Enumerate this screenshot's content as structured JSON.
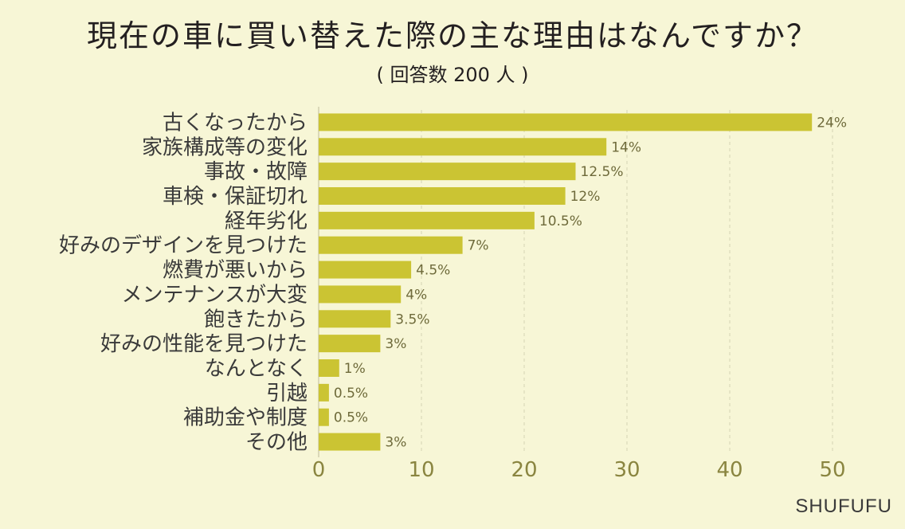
{
  "chart_data": {
    "type": "bar",
    "orientation": "horizontal",
    "title": "現在の車に買い替えた際の主な理由はなんですか？",
    "subtitle": "( 回答数 200 人 )",
    "categories": [
      "古くなったから",
      "家族構成等の変化",
      "事故・故障",
      "車検・保証切れ",
      "経年劣化",
      "好みのデザインを見つけた",
      "燃費が悪いから",
      "メンテナンスが大変",
      "飽きたから",
      "好みの性能を見つけた",
      "なんとなく",
      "引越",
      "補助金や制度",
      "その他"
    ],
    "values": [
      48,
      28,
      25,
      24,
      21,
      14,
      9,
      8,
      7,
      6,
      2,
      1,
      1,
      6
    ],
    "value_labels": [
      "24%",
      "14%",
      "12.5%",
      "12%",
      "10.5%",
      "7%",
      "4.5%",
      "4%",
      "3.5%",
      "3%",
      "1%",
      "0.5%",
      "0.5%",
      "3%"
    ],
    "xlim": [
      0,
      50
    ],
    "xticks": [
      "0",
      "10",
      "20",
      "30",
      "40",
      "50"
    ],
    "grid": "vertical dashed",
    "bar_color": "#cbc433"
  },
  "watermark": "SHUFUFU"
}
